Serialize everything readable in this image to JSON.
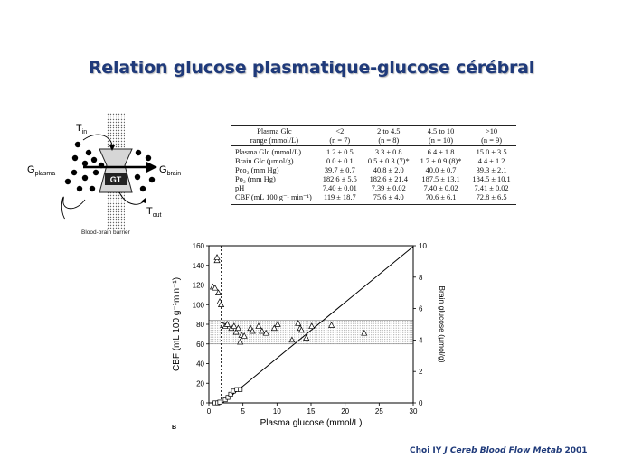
{
  "slide": {
    "title": "Relation glucose plasmatique-glucose cérébral",
    "citation_author": "Choi IY ",
    "citation_journal": "J Cereb Blood Flow Metab",
    "citation_year": " 2001"
  },
  "diagram": {
    "t_in_main": "T",
    "t_in_sub": "in",
    "t_out_main": "T",
    "t_out_sub": "out",
    "g_plasma_main": "G",
    "g_plasma_sub": "plasma",
    "g_brain_main": "G",
    "g_brain_sub": "brain",
    "gt_label": "GT",
    "barrier_label": "Blood-brain barrier"
  },
  "table": {
    "header1": [
      "Plasma Glc",
      "<2",
      "2 to 4.5",
      "4.5 to 10",
      ">10"
    ],
    "header2": [
      "range (mmol/L)",
      "(n = 7)",
      "(n = 8)",
      "(n = 10)",
      "(n = 9)"
    ],
    "rows": [
      [
        "Plasma Glc (mmol/L)",
        "1.2 ± 0.5",
        "3.3 ± 0.8",
        "6.4 ± 1.8",
        "15.0 ± 3.5"
      ],
      [
        "Brain Glc (μmol/g)",
        "0.0 ± 0.1",
        "0.5 ± 0.3 (7)*",
        "1.7 ± 0.9 (8)*",
        "4.4 ± 1.2"
      ],
      [
        "Pco₂ (mm Hg)",
        "39.7 ± 0.7",
        "40.8 ± 2.0",
        "40.0 ± 0.7",
        "39.3 ± 2.1"
      ],
      [
        "Po₂ (mm Hg)",
        "182.6 ± 5.5",
        "182.6 ± 21.4",
        "187.5 ± 13.1",
        "184.5 ± 10.1"
      ],
      [
        "pH",
        "7.40 ± 0.01",
        "7.39 ± 0.02",
        "7.40 ± 0.02",
        "7.41 ± 0.02"
      ],
      [
        "CBF (mL 100 g⁻¹ min⁻¹)",
        "119 ± 18.7",
        "75.6 ± 4.0",
        "70.6 ± 6.1",
        "72.8 ± 6.5"
      ]
    ]
  },
  "chart_data": {
    "type": "scatter",
    "panel_label": "B",
    "xlabel": "Plasma glucose (mmol/L)",
    "ylabel": "CBF (mL 100 g⁻¹min⁻¹)",
    "y2label": "Brain glucose (μmol/g)",
    "xlim": [
      0,
      30
    ],
    "ylim": [
      0,
      160
    ],
    "y2lim": [
      0,
      10
    ],
    "x_ticks": [
      "0",
      "5",
      "10",
      "15",
      "20",
      "25",
      "30"
    ],
    "y_ticks": [
      "0",
      "20",
      "40",
      "60",
      "80",
      "100",
      "120",
      "140",
      "160"
    ],
    "y2_ticks": [
      "0",
      "2",
      "4",
      "6",
      "8",
      "10"
    ],
    "shaded_band_cbf": [
      60,
      84
    ],
    "vertical_dashed_x": 1.8,
    "series": [
      {
        "marker": "triangle",
        "axis": "left",
        "points": [
          [
            0.6,
            118
          ],
          [
            0.9,
            117
          ],
          [
            1.2,
            145
          ],
          [
            1.2,
            148
          ],
          [
            1.4,
            112
          ],
          [
            1.6,
            103
          ],
          [
            1.8,
            100
          ],
          [
            2.1,
            79
          ],
          [
            2.4,
            78
          ],
          [
            2.7,
            80
          ],
          [
            3.3,
            76
          ],
          [
            3.7,
            78
          ],
          [
            4.0,
            72
          ],
          [
            4.3,
            76
          ],
          [
            4.6,
            62
          ],
          [
            4.8,
            69
          ],
          [
            5.2,
            68
          ],
          [
            6.1,
            76
          ],
          [
            6.4,
            73
          ],
          [
            7.3,
            78
          ],
          [
            7.8,
            73
          ],
          [
            8.4,
            71
          ],
          [
            9.6,
            76
          ],
          [
            10.1,
            80
          ],
          [
            12.2,
            64
          ],
          [
            13.1,
            81
          ],
          [
            13.4,
            76
          ],
          [
            13.6,
            74
          ],
          [
            14.3,
            66
          ],
          [
            15.1,
            78
          ],
          [
            18.0,
            79
          ],
          [
            22.8,
            71
          ]
        ]
      },
      {
        "marker": "square",
        "axis": "right",
        "points": [
          [
            0.9,
            0.0
          ],
          [
            1.3,
            0.0
          ],
          [
            1.6,
            0.05
          ],
          [
            2.4,
            0.2
          ],
          [
            2.8,
            0.35
          ],
          [
            3.2,
            0.55
          ],
          [
            3.6,
            0.75
          ],
          [
            4.1,
            0.85
          ],
          [
            4.6,
            0.85
          ]
        ]
      }
    ],
    "fit_line": {
      "axis": "right",
      "x": [
        2.0,
        30.0
      ],
      "y": [
        0.0,
        9.95
      ]
    }
  }
}
